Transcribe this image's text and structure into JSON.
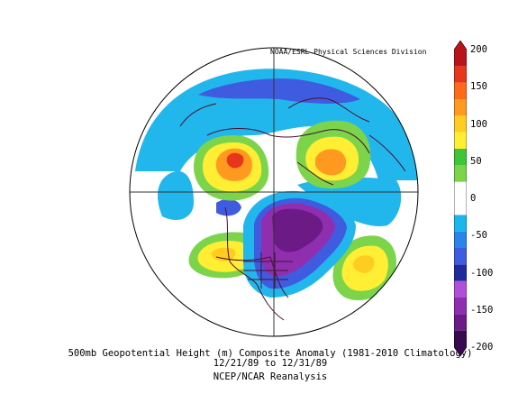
{
  "credit": "NOAA/ESRL Physical Sciences Division",
  "title": "500mb Geopotential Height (m) Composite Anomaly (1981-2010 Climatology)",
  "date_range": "12/21/89  to 12/31/89",
  "source": "NCEP/NCAR Reanalysis",
  "colorbar": {
    "ticks": [
      "200",
      "150",
      "100",
      "50",
      "0",
      "-50",
      "-100",
      "-150",
      "-200"
    ],
    "colors": [
      "#3a0a50",
      "#6b1a86",
      "#8f2fb0",
      "#b050d8",
      "#1f2a9e",
      "#3f5be0",
      "#2c84e6",
      "#1bb6ec",
      "#ffffff",
      "#ffffff",
      "#7cd44a",
      "#3fc43a",
      "#ffee33",
      "#ffcc22",
      "#ff9920",
      "#ff6a1a",
      "#e8361a",
      "#b8141a"
    ]
  }
}
